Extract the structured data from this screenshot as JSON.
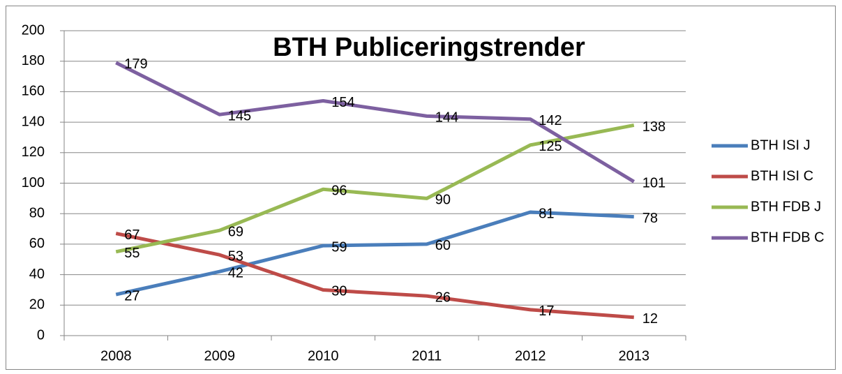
{
  "chart_data": {
    "type": "line",
    "title": "BTH Publiceringstrender",
    "categories": [
      "2008",
      "2009",
      "2010",
      "2011",
      "2012",
      "2013"
    ],
    "series": [
      {
        "name": "BTH ISI J",
        "color": "#4a7ebb",
        "values": [
          27,
          42,
          59,
          60,
          81,
          78
        ]
      },
      {
        "name": "BTH ISI C",
        "color": "#be4b48",
        "values": [
          67,
          53,
          30,
          26,
          17,
          12
        ]
      },
      {
        "name": "BTH FDB J",
        "color": "#98b954",
        "values": [
          55,
          69,
          96,
          90,
          125,
          138
        ]
      },
      {
        "name": "BTH FDB C",
        "color": "#7d60a0",
        "values": [
          179,
          145,
          154,
          144,
          142,
          101
        ]
      }
    ],
    "ylim": [
      0,
      200
    ],
    "yticks": [
      0,
      20,
      40,
      60,
      80,
      100,
      120,
      140,
      160,
      180,
      200
    ],
    "grid": true,
    "legend": "right"
  }
}
